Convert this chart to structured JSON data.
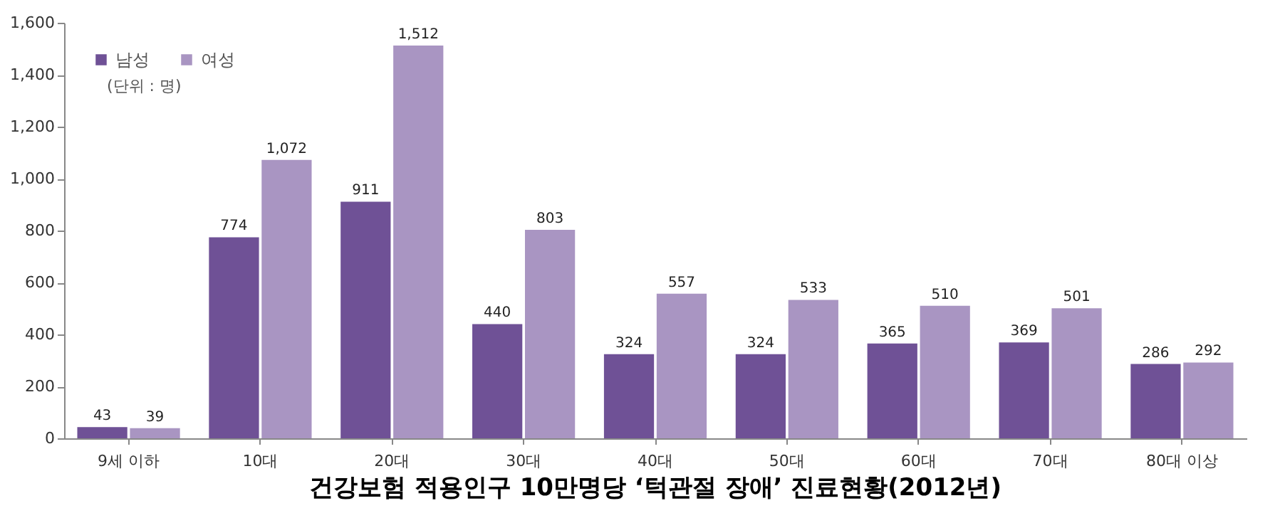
{
  "chart_data": {
    "type": "bar",
    "title": "건강보험 적용인구 10만명당 ‘턱관절 장애’ 진료현황(2012년)",
    "categories": [
      "9세 이하",
      "10대",
      "20대",
      "30대",
      "40대",
      "50대",
      "60대",
      "70대",
      "80대 이상"
    ],
    "series": [
      {
        "name": "남성",
        "color": "#6f5196",
        "values": [
          43,
          774,
          911,
          440,
          324,
          324,
          365,
          369,
          286
        ],
        "value_labels": [
          "43",
          "774",
          "911",
          "440",
          "324",
          "324",
          "365",
          "369",
          "286"
        ]
      },
      {
        "name": "여성",
        "color": "#a995c2",
        "values": [
          39,
          1072,
          1512,
          803,
          557,
          533,
          510,
          501,
          292
        ],
        "value_labels": [
          "39",
          "1,072",
          "1,512",
          "803",
          "557",
          "533",
          "510",
          "501",
          "292"
        ]
      }
    ],
    "ylim": [
      0,
      1600
    ],
    "yticks": [
      0,
      {
        "value": 200,
        "label": "200"
      },
      {
        "value": 400,
        "label": "400"
      },
      {
        "value": 600,
        "label": "600"
      },
      {
        "value": 800,
        "label": "800"
      },
      {
        "value": 1000,
        "label": "1,000"
      },
      {
        "value": 1200,
        "label": "1,200"
      },
      {
        "value": 1400,
        "label": "1,400"
      },
      {
        "value": 1600,
        "label": "1,600"
      }
    ],
    "annotations": [
      "(단위 : 명)"
    ],
    "grid": false,
    "legend": "top left"
  }
}
